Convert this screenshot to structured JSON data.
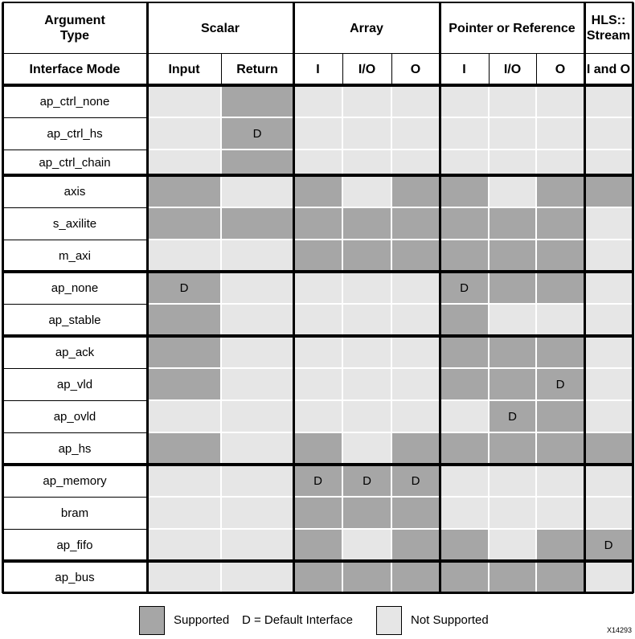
{
  "header": {
    "argument_type": "Argument\nType",
    "interface_mode": "Interface Mode",
    "groups": [
      {
        "label": "Scalar",
        "span": 2
      },
      {
        "label": "Array",
        "span": 3
      },
      {
        "label": "Pointer or Reference",
        "span": 3
      },
      {
        "label": "HLS::\nStream",
        "span": 1
      }
    ],
    "columns": [
      "Input",
      "Return",
      "I",
      "I/O",
      "O",
      "I",
      "I/O",
      "O",
      "I and O"
    ]
  },
  "rows": [
    {
      "mode": "ap_ctrl_none",
      "cells": [
        "N",
        "S",
        "N",
        "N",
        "N",
        "N",
        "N",
        "N",
        "N"
      ],
      "defaults": [
        null,
        null,
        null,
        null,
        null,
        null,
        null,
        null,
        null
      ]
    },
    {
      "mode": "ap_ctrl_hs",
      "cells": [
        "N",
        "S",
        "N",
        "N",
        "N",
        "N",
        "N",
        "N",
        "N"
      ],
      "defaults": [
        null,
        "D",
        null,
        null,
        null,
        null,
        null,
        null,
        null
      ]
    },
    {
      "mode": "ap_ctrl_chain",
      "cells": [
        "N",
        "S",
        "N",
        "N",
        "N",
        "N",
        "N",
        "N",
        "N"
      ],
      "defaults": [
        null,
        null,
        null,
        null,
        null,
        null,
        null,
        null,
        null
      ]
    },
    {
      "mode": "axis",
      "cells": [
        "S",
        "N",
        "S",
        "N",
        "S",
        "S",
        "N",
        "S",
        "S"
      ],
      "defaults": [
        null,
        null,
        null,
        null,
        null,
        null,
        null,
        null,
        null
      ]
    },
    {
      "mode": "s_axilite",
      "cells": [
        "S",
        "S",
        "S",
        "S",
        "S",
        "S",
        "S",
        "S",
        "N"
      ],
      "defaults": [
        null,
        null,
        null,
        null,
        null,
        null,
        null,
        null,
        null
      ]
    },
    {
      "mode": "m_axi",
      "cells": [
        "N",
        "N",
        "S",
        "S",
        "S",
        "S",
        "S",
        "S",
        "N"
      ],
      "defaults": [
        null,
        null,
        null,
        null,
        null,
        null,
        null,
        null,
        null
      ]
    },
    {
      "mode": "ap_none",
      "cells": [
        "S",
        "N",
        "N",
        "N",
        "N",
        "S",
        "S",
        "S",
        "N"
      ],
      "defaults": [
        "D",
        null,
        null,
        null,
        null,
        "D",
        null,
        null,
        null
      ]
    },
    {
      "mode": "ap_stable",
      "cells": [
        "S",
        "N",
        "N",
        "N",
        "N",
        "S",
        "N",
        "N",
        "N"
      ],
      "defaults": [
        null,
        null,
        null,
        null,
        null,
        null,
        null,
        null,
        null
      ]
    },
    {
      "mode": "ap_ack",
      "cells": [
        "S",
        "N",
        "N",
        "N",
        "N",
        "S",
        "S",
        "S",
        "N"
      ],
      "defaults": [
        null,
        null,
        null,
        null,
        null,
        null,
        null,
        null,
        null
      ]
    },
    {
      "mode": "ap_vld",
      "cells": [
        "S",
        "N",
        "N",
        "N",
        "N",
        "S",
        "S",
        "S",
        "N"
      ],
      "defaults": [
        null,
        null,
        null,
        null,
        null,
        null,
        null,
        "D",
        null
      ]
    },
    {
      "mode": "ap_ovld",
      "cells": [
        "N",
        "N",
        "N",
        "N",
        "N",
        "N",
        "S",
        "S",
        "N"
      ],
      "defaults": [
        null,
        null,
        null,
        null,
        null,
        null,
        "D",
        null,
        null
      ]
    },
    {
      "mode": "ap_hs",
      "cells": [
        "S",
        "N",
        "S",
        "N",
        "S",
        "S",
        "S",
        "S",
        "S"
      ],
      "defaults": [
        null,
        null,
        null,
        null,
        null,
        null,
        null,
        null,
        null
      ]
    },
    {
      "mode": "ap_memory",
      "cells": [
        "N",
        "N",
        "S",
        "S",
        "S",
        "N",
        "N",
        "N",
        "N"
      ],
      "defaults": [
        null,
        null,
        "D",
        "D",
        "D",
        null,
        null,
        null,
        null
      ]
    },
    {
      "mode": "bram",
      "cells": [
        "N",
        "N",
        "S",
        "S",
        "S",
        "N",
        "N",
        "N",
        "N"
      ],
      "defaults": [
        null,
        null,
        null,
        null,
        null,
        null,
        null,
        null,
        null
      ]
    },
    {
      "mode": "ap_fifo",
      "cells": [
        "N",
        "N",
        "S",
        "N",
        "S",
        "S",
        "N",
        "S",
        "S"
      ],
      "defaults": [
        null,
        null,
        null,
        null,
        null,
        null,
        null,
        null,
        "D"
      ]
    },
    {
      "mode": "ap_bus",
      "cells": [
        "N",
        "N",
        "S",
        "S",
        "S",
        "S",
        "S",
        "S",
        "N"
      ],
      "defaults": [
        null,
        null,
        null,
        null,
        null,
        null,
        null,
        null,
        null
      ]
    }
  ],
  "legend": {
    "supported": "Supported",
    "default_note": "D = Default Interface",
    "not_supported": "Not Supported"
  },
  "colors": {
    "supported": "#a6a6a6",
    "not_supported": "#e6e6e6",
    "border": "#000000"
  },
  "figure_id": "X14293"
}
